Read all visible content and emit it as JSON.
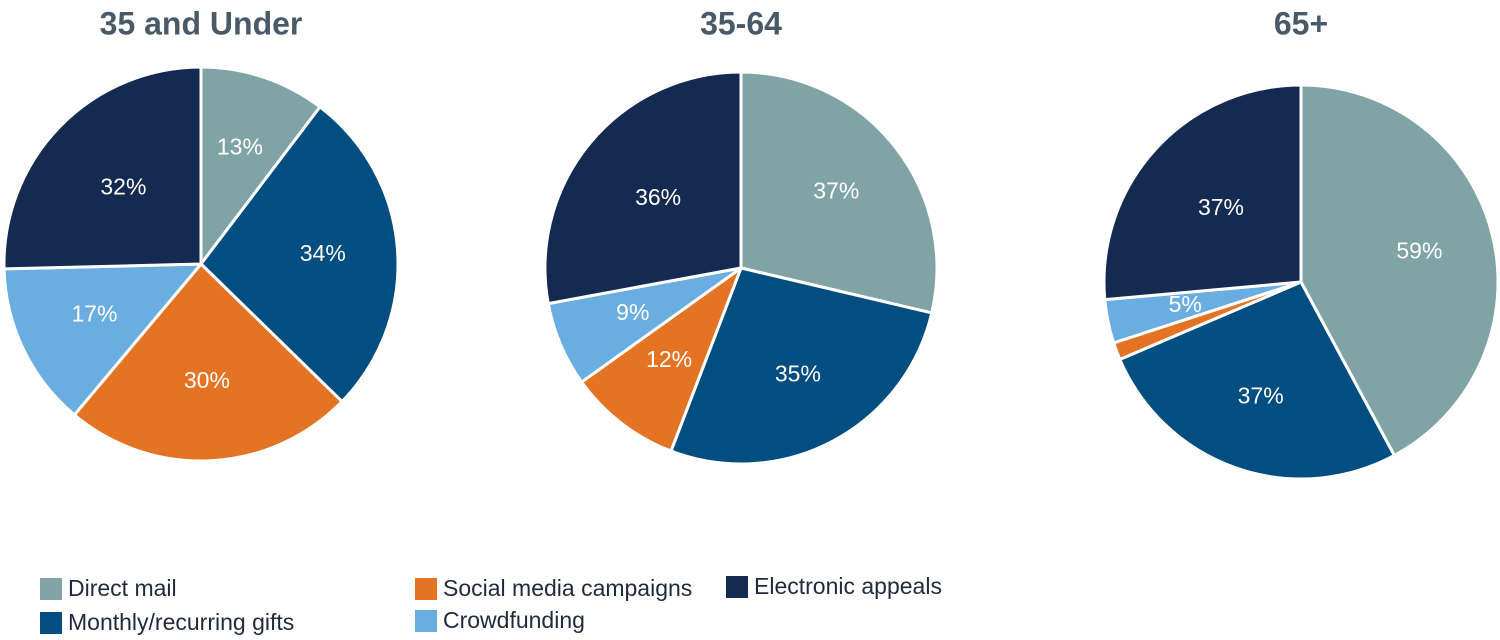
{
  "chart_data": {
    "type": "pie",
    "categories": [
      "Direct mail",
      "Monthly/recurring gifts",
      "Social media campaigns",
      "Crowdfunding",
      "Electronic appeals"
    ],
    "colors": {
      "Direct mail": "#80a4a6",
      "Monthly/recurring gifts": "#034e80",
      "Social media campaigns": "#e57324",
      "Crowdfunding": "#6aade0",
      "Electronic appeals": "#142a51"
    },
    "legend_order": [
      "Direct mail",
      "Social media campaigns",
      "Electronic appeals",
      "Monthly/recurring gifts",
      "Crowdfunding"
    ],
    "legend_position": "bottom-left",
    "charts": [
      {
        "title": "35 and Under",
        "values": [
          13,
          34,
          30,
          17,
          32
        ],
        "labels": [
          "13%",
          "34%",
          "30%",
          "17%",
          "32%"
        ]
      },
      {
        "title": "35-64",
        "values": [
          37,
          35,
          12,
          9,
          36
        ],
        "labels": [
          "37%",
          "35%",
          "12%",
          "9%",
          "36%"
        ]
      },
      {
        "title": "65+",
        "values": [
          59,
          37,
          2,
          5,
          37
        ],
        "labels": [
          "59%",
          "37%",
          "",
          "5%",
          "37%"
        ]
      }
    ]
  }
}
